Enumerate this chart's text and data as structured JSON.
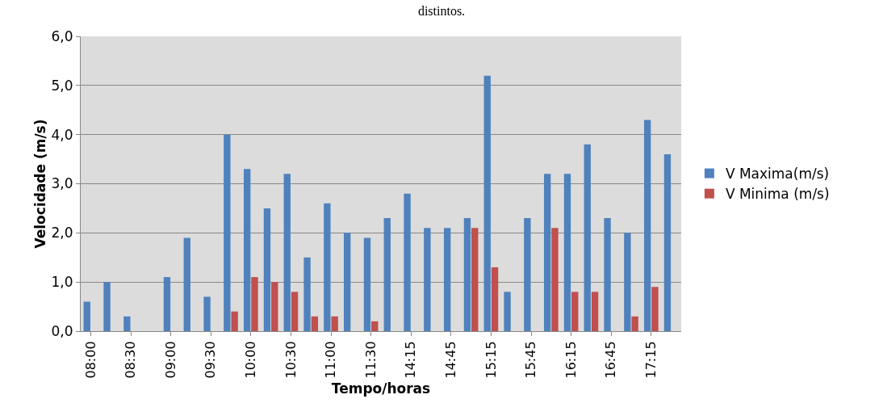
{
  "chart_data": {
    "type": "bar",
    "title": "distintos.",
    "xlabel": "Tempo/horas",
    "ylabel": "Velocidade (m/s)",
    "categories": [
      "08:00",
      null,
      "08:30",
      null,
      "09:00",
      null,
      "09:30",
      null,
      "10:00",
      null,
      "10:30",
      null,
      "11:00",
      null,
      "11:30",
      null,
      "14:15",
      null,
      "14:45",
      null,
      "15:15",
      null,
      "15:45",
      null,
      "16:15",
      null,
      "16:45",
      null,
      "17:15",
      null
    ],
    "series": [
      {
        "name": "V Maxima(m/s)",
        "color": "#4f81bd",
        "values": [
          0.6,
          1.0,
          0.3,
          0.0,
          1.1,
          1.9,
          0.7,
          4.0,
          3.3,
          2.5,
          3.2,
          1.5,
          2.6,
          2.0,
          1.9,
          2.3,
          2.8,
          2.1,
          2.1,
          2.3,
          5.2,
          0.8,
          2.3,
          3.2,
          3.2,
          3.8,
          2.3,
          2.0,
          4.3,
          3.6
        ]
      },
      {
        "name": "V Minima (m/s)",
        "color": "#c0504d",
        "values": [
          0,
          0,
          0,
          0,
          0,
          0,
          0,
          0.4,
          1.1,
          1.0,
          0.8,
          0.3,
          0.3,
          0,
          0.2,
          0,
          0,
          0,
          0,
          2.1,
          1.3,
          0,
          0,
          2.1,
          0.8,
          0.8,
          0,
          0.3,
          0.9,
          0
        ]
      }
    ],
    "ylim": [
      0,
      6
    ],
    "yticks": [
      {
        "value": 0,
        "label": "0,0"
      },
      {
        "value": 1,
        "label": "1,0"
      },
      {
        "value": 2,
        "label": "2,0"
      },
      {
        "value": 3,
        "label": "3,0"
      },
      {
        "value": 4,
        "label": "4,0"
      },
      {
        "value": 5,
        "label": "5,0"
      },
      {
        "value": 6,
        "label": "6,0"
      }
    ],
    "grid": "y",
    "legend": "right"
  }
}
